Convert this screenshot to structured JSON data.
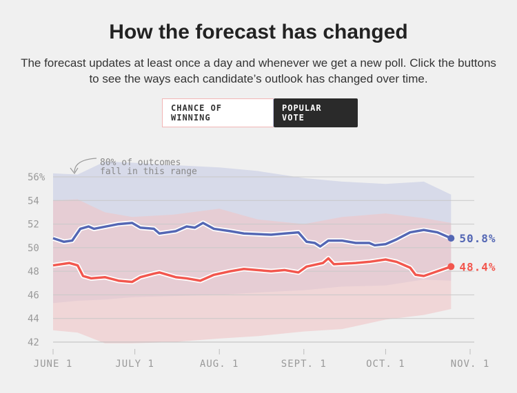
{
  "header": {
    "title": "How the forecast has changed",
    "subtitle": "The forecast updates at least once a day and whenever we get a new poll. Click the buttons to see the ways each candidate’s outlook has changed over time."
  },
  "buttons": {
    "chance": "CHANCE OF WINNING",
    "popular": "POPULAR VOTE",
    "active": "popular"
  },
  "chart_data": {
    "type": "line",
    "annotation": [
      "80% of outcomes",
      "fall in this range"
    ],
    "ylim": [
      42,
      56
    ],
    "yticks": [
      {
        "v": 56,
        "label": "56%"
      },
      {
        "v": 54,
        "label": "54"
      },
      {
        "v": 52,
        "label": "52"
      },
      {
        "v": 50,
        "label": "50"
      },
      {
        "v": 48,
        "label": "48"
      },
      {
        "v": 46,
        "label": "46"
      },
      {
        "v": 44,
        "label": "44"
      },
      {
        "v": 42,
        "label": "42"
      }
    ],
    "xticks": [
      {
        "d": "06-01",
        "label": "JUNE 1"
      },
      {
        "d": "07-01",
        "label": "JULY 1"
      },
      {
        "d": "08-01",
        "label": "AUG. 1"
      },
      {
        "d": "09-01",
        "label": "SEPT. 1"
      },
      {
        "d": "10-01",
        "label": "OCT. 1"
      },
      {
        "d": "11-01",
        "label": "NOV. 1"
      }
    ],
    "grid": true,
    "series": [
      {
        "color": "#5467b4",
        "end_label": "50.8%",
        "x": [
          "06-01",
          "06-05",
          "06-08",
          "06-11",
          "06-14",
          "06-16",
          "06-25",
          "06-30",
          "07-03",
          "07-08",
          "07-10",
          "07-16",
          "07-20",
          "07-23",
          "07-26",
          "07-30",
          "08-05",
          "08-10",
          "08-20",
          "08-25",
          "08-30",
          "09-02",
          "09-05",
          "09-07",
          "09-10",
          "09-15",
          "09-20",
          "09-25",
          "09-27",
          "10-01",
          "10-05",
          "10-10",
          "10-15",
          "10-20",
          "10-25"
        ],
        "y": [
          50.8,
          50.5,
          50.6,
          51.6,
          51.8,
          51.6,
          52.0,
          52.1,
          51.7,
          51.6,
          51.2,
          51.4,
          51.8,
          51.7,
          52.1,
          51.6,
          51.4,
          51.2,
          51.1,
          51.2,
          51.3,
          50.5,
          50.4,
          50.1,
          50.6,
          50.6,
          50.4,
          50.4,
          50.2,
          50.3,
          50.7,
          51.3,
          51.5,
          51.3,
          50.8
        ],
        "band_x": [
          "06-01",
          "06-10",
          "06-20",
          "06-30",
          "07-15",
          "08-01",
          "08-15",
          "09-01",
          "09-15",
          "10-01",
          "10-15",
          "10-25"
        ],
        "band_hi": [
          56.3,
          56.2,
          57.3,
          57.2,
          57.0,
          56.8,
          56.5,
          55.9,
          55.6,
          55.4,
          55.6,
          54.5
        ],
        "band_lo": [
          45.3,
          45.5,
          45.6,
          45.8,
          45.9,
          46.0,
          46.2,
          46.4,
          46.7,
          46.8,
          47.3,
          47.2
        ]
      },
      {
        "color": "#f2574e",
        "end_label": "48.4%",
        "x": [
          "06-01",
          "06-07",
          "06-10",
          "06-12",
          "06-15",
          "06-20",
          "06-25",
          "06-30",
          "07-03",
          "07-08",
          "07-10",
          "07-16",
          "07-20",
          "07-25",
          "07-30",
          "08-05",
          "08-10",
          "08-20",
          "08-25",
          "08-30",
          "09-02",
          "09-08",
          "09-10",
          "09-12",
          "09-20",
          "09-25",
          "10-01",
          "10-05",
          "10-10",
          "10-12",
          "10-15",
          "10-20",
          "10-25"
        ],
        "y": [
          48.5,
          48.7,
          48.5,
          47.6,
          47.4,
          47.5,
          47.2,
          47.1,
          47.5,
          47.8,
          47.9,
          47.5,
          47.4,
          47.2,
          47.7,
          48.0,
          48.2,
          48.0,
          48.1,
          47.9,
          48.4,
          48.7,
          49.1,
          48.6,
          48.7,
          48.8,
          49.0,
          48.8,
          48.3,
          47.7,
          47.6,
          48.0,
          48.4
        ],
        "band_x": [
          "06-01",
          "06-10",
          "06-20",
          "06-30",
          "07-15",
          "08-01",
          "08-15",
          "09-01",
          "09-15",
          "10-01",
          "10-15",
          "10-25"
        ],
        "band_hi": [
          54.0,
          54.1,
          53.0,
          52.6,
          52.8,
          53.3,
          52.4,
          52.0,
          52.6,
          52.9,
          52.5,
          52.1
        ],
        "band_lo": [
          43.0,
          42.8,
          41.9,
          41.9,
          42.0,
          42.3,
          42.5,
          42.9,
          43.1,
          43.9,
          44.3,
          44.8
        ]
      }
    ]
  }
}
